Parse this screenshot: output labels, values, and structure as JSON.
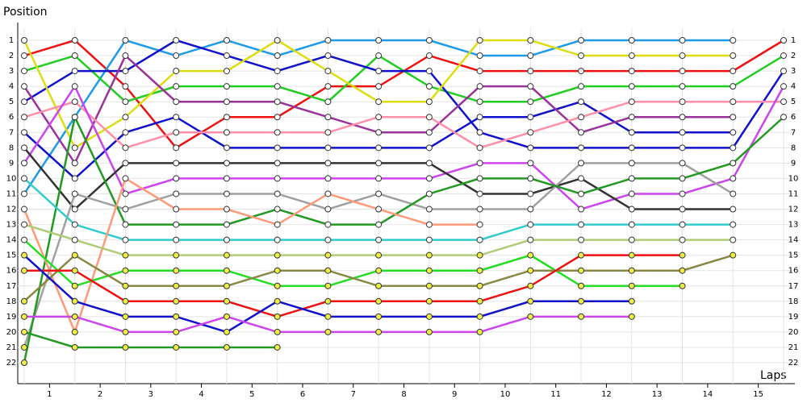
{
  "chart_data": {
    "type": "line",
    "title": "Position",
    "x_label": "Laps",
    "x": [
      0,
      1,
      2,
      3,
      4,
      5,
      6,
      7,
      8,
      9,
      10,
      11,
      12,
      13,
      14,
      15
    ],
    "xlim": [
      0,
      15
    ],
    "xticks": [
      {
        "value": 0.5,
        "label": "1"
      },
      {
        "value": 1.5,
        "label": "2"
      },
      {
        "value": 2.5,
        "label": "3"
      },
      {
        "value": 3.5,
        "label": "4"
      },
      {
        "value": 4.5,
        "label": "5"
      },
      {
        "value": 5.5,
        "label": "6"
      },
      {
        "value": 6.5,
        "label": "7"
      },
      {
        "value": 7.5,
        "label": "8"
      },
      {
        "value": 8.5,
        "label": "9"
      },
      {
        "value": 9.5,
        "label": "10"
      },
      {
        "value": 10.5,
        "label": "11"
      },
      {
        "value": 11.5,
        "label": "12"
      },
      {
        "value": 12.5,
        "label": "13"
      },
      {
        "value": 13.5,
        "label": "14"
      },
      {
        "value": 14.5,
        "label": "15"
      }
    ],
    "ylim": [
      1,
      22
    ],
    "y_inverted": true,
    "yticks": [
      1,
      2,
      3,
      4,
      5,
      6,
      7,
      8,
      9,
      10,
      11,
      12,
      13,
      14,
      15,
      16,
      17,
      18,
      19,
      20,
      21,
      22
    ],
    "grid": true,
    "series": [
      {
        "color": "#ee1111",
        "values": [
          2,
          1,
          4,
          8,
          6,
          6,
          4,
          4,
          2,
          3,
          3,
          3,
          3,
          3,
          3,
          1
        ]
      },
      {
        "color": "#1e9be8",
        "values": [
          11,
          6,
          1,
          2,
          1,
          2,
          1,
          1,
          1,
          2,
          2,
          1,
          1,
          1,
          1,
          null
        ]
      },
      {
        "color": "#22cc22",
        "values": [
          3,
          2,
          5,
          4,
          4,
          4,
          5,
          2,
          4,
          5,
          5,
          4,
          4,
          4,
          4,
          2
        ]
      },
      {
        "color": "#1111cc",
        "values": [
          5,
          3,
          3,
          1,
          2,
          3,
          2,
          3,
          3,
          7,
          8,
          8,
          8,
          8,
          8,
          3
        ]
      },
      {
        "color": "#1111cc",
        "values": [
          7,
          10,
          7,
          6,
          8,
          8,
          8,
          8,
          8,
          6,
          6,
          5,
          7,
          7,
          7,
          null
        ]
      },
      {
        "color": "#dddd11",
        "values": [
          1,
          8,
          6,
          3,
          3,
          1,
          3,
          5,
          5,
          1,
          1,
          2,
          2,
          2,
          2,
          null
        ]
      },
      {
        "color": "#993399",
        "values": [
          4,
          9,
          2,
          5,
          5,
          5,
          6,
          7,
          7,
          4,
          4,
          7,
          6,
          6,
          6,
          null
        ]
      },
      {
        "color": "#ff8fa8",
        "values": [
          6,
          5,
          8,
          7,
          7,
          7,
          7,
          6,
          6,
          8,
          7,
          6,
          5,
          5,
          5,
          5
        ]
      },
      {
        "color": "#cc44ee",
        "values": [
          9,
          4,
          11,
          10,
          10,
          10,
          10,
          10,
          10,
          9,
          9,
          12,
          11,
          11,
          10,
          4
        ]
      },
      {
        "color": "#333333",
        "values": [
          8,
          12,
          9,
          9,
          9,
          9,
          9,
          9,
          9,
          11,
          11,
          10,
          12,
          12,
          12,
          null
        ]
      },
      {
        "color": "#a0a0a0",
        "values": [
          21,
          11,
          12,
          11,
          11,
          11,
          12,
          11,
          12,
          12,
          12,
          9,
          9,
          9,
          11,
          null
        ]
      },
      {
        "color": "#229922",
        "values": [
          22,
          6,
          13,
          13,
          13,
          12,
          13,
          13,
          11,
          10,
          10,
          11,
          10,
          10,
          9,
          6
        ]
      },
      {
        "color": "#33cccc",
        "values": [
          10,
          13,
          14,
          14,
          14,
          14,
          14,
          14,
          14,
          14,
          13,
          13,
          13,
          13,
          13,
          null
        ]
      },
      {
        "color": "#ff9977",
        "values": [
          12,
          20,
          10,
          12,
          12,
          13,
          11,
          12,
          13,
          13,
          null,
          null,
          null,
          null,
          null,
          null
        ]
      },
      {
        "color": "#b0cc77",
        "values": [
          13,
          14,
          15,
          15,
          15,
          15,
          15,
          15,
          15,
          15,
          14,
          14,
          14,
          14,
          14,
          null
        ]
      },
      {
        "color": "#22dd22",
        "values": [
          14,
          17,
          16,
          16,
          16,
          17,
          17,
          16,
          16,
          16,
          15,
          17,
          17,
          17,
          null,
          null
        ]
      },
      {
        "color": "#888844",
        "values": [
          18,
          15,
          17,
          17,
          17,
          16,
          16,
          17,
          17,
          17,
          16,
          16,
          16,
          16,
          15,
          null
        ]
      },
      {
        "color": "#ee1111",
        "values": [
          16,
          16,
          18,
          18,
          18,
          19,
          18,
          18,
          18,
          18,
          17,
          15,
          15,
          15,
          null,
          null
        ]
      },
      {
        "color": "#1111cc",
        "values": [
          15,
          18,
          19,
          19,
          20,
          18,
          19,
          19,
          19,
          19,
          18,
          18,
          18,
          null,
          null,
          null
        ]
      },
      {
        "color": "#cc44ee",
        "values": [
          19,
          19,
          20,
          20,
          19,
          20,
          20,
          20,
          20,
          20,
          19,
          19,
          19,
          null,
          null,
          null
        ]
      },
      {
        "color": "#229922",
        "values": [
          20,
          21,
          21,
          21,
          21,
          21,
          null,
          null,
          null,
          null,
          null,
          null,
          null,
          null,
          null,
          null
        ]
      }
    ]
  }
}
